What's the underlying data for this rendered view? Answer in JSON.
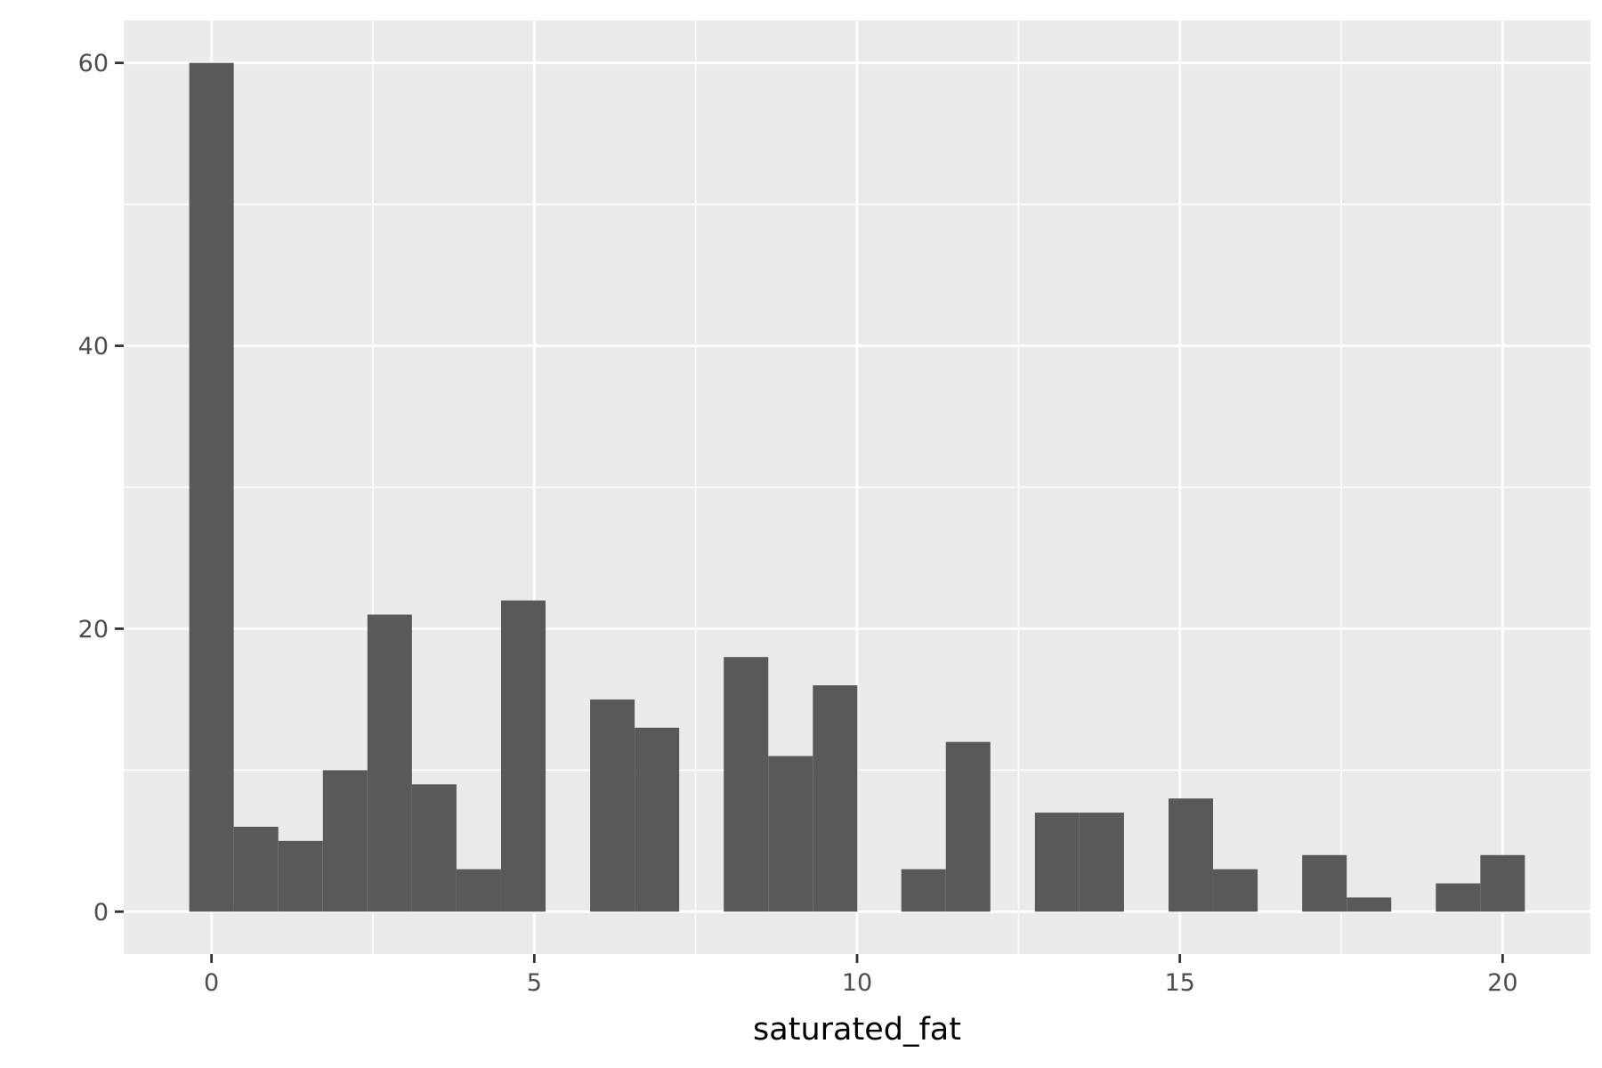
{
  "chart_data": {
    "type": "bar",
    "subtype": "histogram",
    "title": "",
    "xlabel": "saturated_fat",
    "ylabel": "",
    "xlim": [
      -1.36,
      21.36
    ],
    "ylim": [
      -3,
      63
    ],
    "x_ticks": [
      0,
      5,
      10,
      15,
      20
    ],
    "y_ticks": [
      0,
      20,
      40,
      60
    ],
    "grid": true,
    "legend": "none",
    "bin_width": 0.6897,
    "bins": [
      {
        "x": 0.0,
        "count": 60
      },
      {
        "x": 0.69,
        "count": 6
      },
      {
        "x": 1.38,
        "count": 5
      },
      {
        "x": 2.07,
        "count": 10
      },
      {
        "x": 2.76,
        "count": 21
      },
      {
        "x": 3.45,
        "count": 9
      },
      {
        "x": 4.14,
        "count": 3
      },
      {
        "x": 4.83,
        "count": 22
      },
      {
        "x": 5.52,
        "count": 0
      },
      {
        "x": 6.21,
        "count": 15
      },
      {
        "x": 6.9,
        "count": 13
      },
      {
        "x": 7.59,
        "count": 0
      },
      {
        "x": 8.28,
        "count": 18
      },
      {
        "x": 8.97,
        "count": 11
      },
      {
        "x": 9.66,
        "count": 16
      },
      {
        "x": 10.34,
        "count": 0
      },
      {
        "x": 11.03,
        "count": 3
      },
      {
        "x": 11.72,
        "count": 12
      },
      {
        "x": 12.41,
        "count": 0
      },
      {
        "x": 13.1,
        "count": 7
      },
      {
        "x": 13.79,
        "count": 7
      },
      {
        "x": 14.48,
        "count": 0
      },
      {
        "x": 15.17,
        "count": 8
      },
      {
        "x": 15.86,
        "count": 3
      },
      {
        "x": 16.55,
        "count": 0
      },
      {
        "x": 17.24,
        "count": 4
      },
      {
        "x": 17.93,
        "count": 1
      },
      {
        "x": 18.62,
        "count": 0
      },
      {
        "x": 19.31,
        "count": 2
      },
      {
        "x": 20.0,
        "count": 4
      }
    ]
  },
  "colors": {
    "panel_background": "#ebebeb",
    "grid_major": "#ffffff",
    "bar_fill": "#595959",
    "tick_text": "#4d4d4d",
    "axis_ticks": "#333333"
  }
}
